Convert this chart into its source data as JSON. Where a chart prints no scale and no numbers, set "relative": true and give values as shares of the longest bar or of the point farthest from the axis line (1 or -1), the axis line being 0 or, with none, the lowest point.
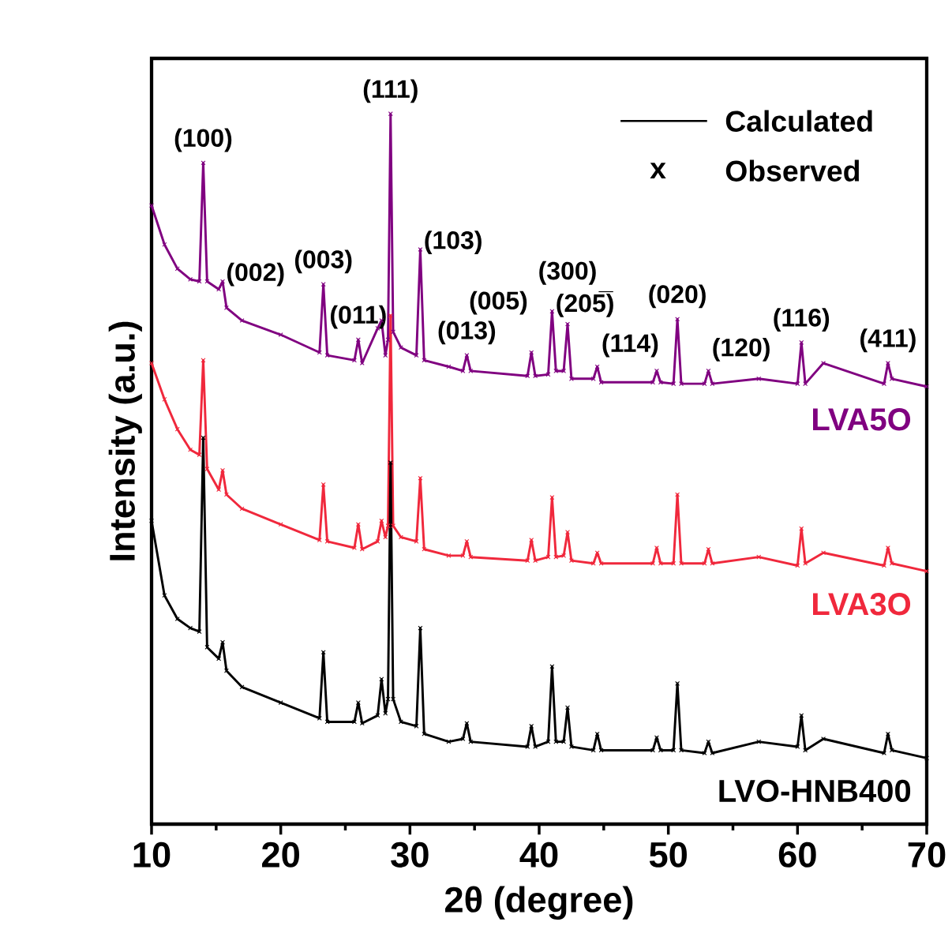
{
  "chart_data": {
    "type": "line",
    "relative": true,
    "marker": "cross",
    "xlabel": "2θ (degree)",
    "ylabel": "Intensity (a.u.)",
    "xlim": [
      10,
      70
    ],
    "xticks": [
      10,
      20,
      30,
      40,
      50,
      60,
      70
    ],
    "x": [
      10,
      11,
      12,
      13,
      13.7,
      14.0,
      14.3,
      15.2,
      15.5,
      15.8,
      17,
      20,
      23.0,
      23.3,
      23.6,
      25.7,
      26.0,
      26.3,
      27.5,
      27.8,
      28.1,
      28.3,
      28.5,
      28.7,
      29.3,
      30.5,
      30.8,
      31.1,
      33,
      34.1,
      34.4,
      34.7,
      39.1,
      39.4,
      39.7,
      40.7,
      41.0,
      41.3,
      41.9,
      42.2,
      42.5,
      44.2,
      44.5,
      44.8,
      48.8,
      49.1,
      49.4,
      50.4,
      50.7,
      51.0,
      52.8,
      53.1,
      53.4,
      57,
      60.0,
      60.3,
      60.6,
      62,
      66.7,
      67.0,
      67.3,
      70
    ],
    "series": [
      {
        "name": "LVA5O",
        "color": "#800080",
        "values": [
          0.871,
          0.816,
          0.782,
          0.767,
          0.764,
          0.931,
          0.764,
          0.753,
          0.764,
          0.727,
          0.709,
          0.689,
          0.664,
          0.76,
          0.66,
          0.653,
          0.682,
          0.649,
          0.698,
          0.709,
          0.66,
          0.682,
          1.0,
          0.693,
          0.671,
          0.66,
          0.809,
          0.653,
          0.644,
          0.638,
          0.66,
          0.638,
          0.631,
          0.664,
          0.631,
          0.633,
          0.722,
          0.638,
          0.638,
          0.704,
          0.627,
          0.627,
          0.644,
          0.622,
          0.622,
          0.638,
          0.622,
          0.62,
          0.711,
          0.62,
          0.62,
          0.638,
          0.62,
          0.627,
          0.62,
          0.678,
          0.62,
          0.649,
          0.62,
          0.649,
          0.627,
          0.616
        ]
      },
      {
        "name": "LVA3O",
        "color": "#f0283c",
        "values": [
          0.649,
          0.598,
          0.556,
          0.527,
          0.52,
          0.653,
          0.5,
          0.471,
          0.498,
          0.464,
          0.444,
          0.422,
          0.4,
          0.478,
          0.398,
          0.389,
          0.422,
          0.387,
          0.398,
          0.427,
          0.404,
          0.42,
          0.716,
          0.42,
          0.404,
          0.398,
          0.487,
          0.387,
          0.378,
          0.378,
          0.398,
          0.376,
          0.371,
          0.4,
          0.371,
          0.376,
          0.46,
          0.376,
          0.378,
          0.411,
          0.371,
          0.367,
          0.382,
          0.367,
          0.367,
          0.389,
          0.367,
          0.367,
          0.464,
          0.367,
          0.367,
          0.387,
          0.367,
          0.376,
          0.364,
          0.416,
          0.367,
          0.382,
          0.364,
          0.389,
          0.367,
          0.356
        ]
      },
      {
        "name": "LVO-HNB400",
        "color": "#000000",
        "values": [
          0.427,
          0.322,
          0.289,
          0.276,
          0.271,
          0.544,
          0.249,
          0.233,
          0.256,
          0.216,
          0.193,
          0.171,
          0.149,
          0.242,
          0.144,
          0.144,
          0.171,
          0.142,
          0.153,
          0.204,
          0.156,
          0.176,
          0.509,
          0.176,
          0.144,
          0.138,
          0.276,
          0.127,
          0.116,
          0.12,
          0.142,
          0.116,
          0.109,
          0.138,
          0.109,
          0.116,
          0.222,
          0.116,
          0.116,
          0.164,
          0.109,
          0.104,
          0.127,
          0.104,
          0.104,
          0.122,
          0.104,
          0.104,
          0.198,
          0.104,
          0.1,
          0.116,
          0.1,
          0.116,
          0.109,
          0.153,
          0.104,
          0.12,
          0.1,
          0.127,
          0.104,
          0.093
        ]
      }
    ],
    "annotations": [
      "Calculated",
      "x",
      "Observed",
      {
        "text": "(100)",
        "x": 14.0,
        "y": 0.931
      },
      {
        "text": "(002)",
        "x": 15.5,
        "y": 0.764
      },
      {
        "text": "(003)",
        "x": 23.3,
        "y": 0.76
      },
      {
        "text": "(011)",
        "x": 26.0,
        "y": 0.682
      },
      {
        "text": "(111)",
        "x": 28.5,
        "y": 1.0
      },
      {
        "text": "(103)",
        "x": 30.8,
        "y": 0.809
      },
      {
        "text": "(013)",
        "x": 34.4,
        "y": 0.66
      },
      {
        "text": "(005)",
        "x": 39.4,
        "y": 0.664
      },
      {
        "text": "(205̅)",
        "x": 41.0,
        "y": 0.722
      },
      {
        "text": "(300)",
        "x": 42.2,
        "y": 0.704
      },
      {
        "text": "(114)",
        "x": 44.5,
        "y": 0.644
      },
      {
        "text": "(020)",
        "x": 50.7,
        "y": 0.711
      },
      {
        "text": "(120)",
        "x": 53.1,
        "y": 0.638
      },
      {
        "text": "(116)",
        "x": 60.3,
        "y": 0.678
      },
      {
        "text": "(411)",
        "x": 67.0,
        "y": 0.649
      }
    ]
  }
}
